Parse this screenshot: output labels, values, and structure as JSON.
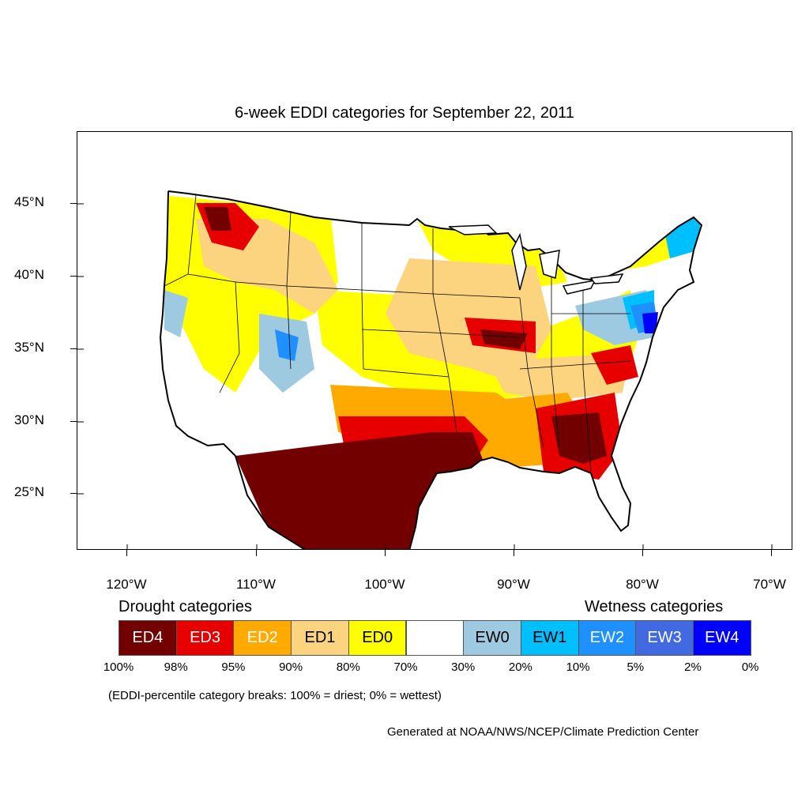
{
  "title": "6-week EDDI categories for September 22, 2011",
  "lat_labels": [
    "45°N",
    "40°N",
    "35°N",
    "30°N",
    "25°N"
  ],
  "lon_labels": [
    "120°W",
    "110°W",
    "100°W",
    "90°W",
    "80°W",
    "70°W"
  ],
  "legend": {
    "drought_heading": "Drought categories",
    "wetness_heading": "Wetness categories",
    "categories": [
      {
        "label": "ED4",
        "color": "#730000",
        "text_color": "#ffffff"
      },
      {
        "label": "ED3",
        "color": "#e60000",
        "text_color": "#ffffff"
      },
      {
        "label": "ED2",
        "color": "#ffaa00",
        "text_color": "#ffffff"
      },
      {
        "label": "ED1",
        "color": "#fcd37f",
        "text_color": "#000000"
      },
      {
        "label": "ED0",
        "color": "#ffff00",
        "text_color": "#000000"
      },
      {
        "label": "",
        "color": "#ffffff",
        "text_color": "#000000"
      },
      {
        "label": "EW0",
        "color": "#9ecae1",
        "text_color": "#000000"
      },
      {
        "label": "EW1",
        "color": "#00bfff",
        "text_color": "#000000"
      },
      {
        "label": "EW2",
        "color": "#1e90ff",
        "text_color": "#ffffff"
      },
      {
        "label": "EW3",
        "color": "#4169e1",
        "text_color": "#ffffff"
      },
      {
        "label": "EW4",
        "color": "#0000ff",
        "text_color": "#ffffff"
      }
    ],
    "percentiles": [
      "100%",
      "98%",
      "95%",
      "90%",
      "80%",
      "70%",
      "30%",
      "20%",
      "10%",
      "5%",
      "2%",
      "0%"
    ]
  },
  "breaks_note": "(EDDI-percentile category breaks: 100% = driest; 0% = wettest)",
  "credit": "Generated at NOAA/NWS/NCEP/Climate Prediction Center"
}
